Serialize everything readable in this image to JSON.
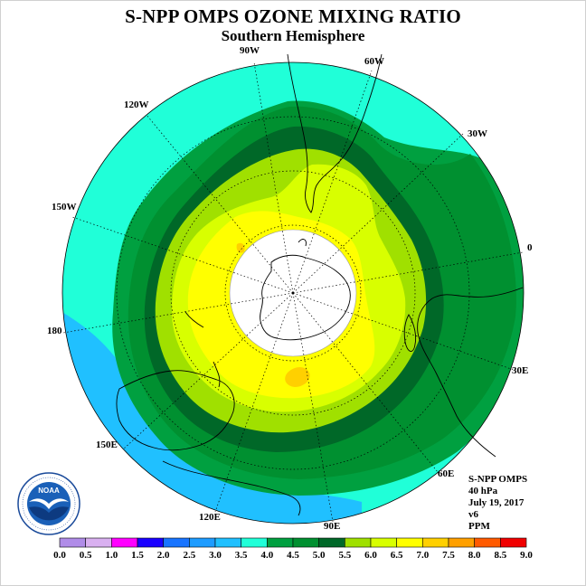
{
  "title": "S-NPP OMPS OZONE MIXING RATIO",
  "subtitle": "Southern Hemisphere",
  "longitude_labels": [
    "90W",
    "60W",
    "30W",
    "0",
    "30E",
    "60E",
    "90E",
    "120E",
    "150E",
    "180",
    "150W",
    "120W"
  ],
  "info": {
    "instrument": "S-NPP OMPS",
    "level": "40 hPa",
    "date": "July 19, 2017",
    "version": "v6",
    "units": "PPM"
  },
  "colorbar": {
    "ticks": [
      "0.0",
      "0.5",
      "1.0",
      "1.5",
      "2.0",
      "2.5",
      "3.0",
      "3.5",
      "4.0",
      "4.5",
      "5.0",
      "5.5",
      "6.0",
      "6.5",
      "7.0",
      "7.5",
      "8.0",
      "8.5",
      "9.0"
    ],
    "colors": [
      "#b08ce8",
      "#d9b0f0",
      "#ff00ff",
      "#1a00ff",
      "#1874ff",
      "#1e9cff",
      "#20c0ff",
      "#20ffd8",
      "#00a040",
      "#009030",
      "#006828",
      "#a0e000",
      "#d8ff00",
      "#ffff00",
      "#ffd000",
      "#ffa000",
      "#ff5a00",
      "#f00000",
      "#8a5030"
    ]
  },
  "contour_levels": [
    {
      "name": "3.5-4.0",
      "color": "#20ffd8"
    },
    {
      "name": "4.0-4.5",
      "color": "#00a040"
    },
    {
      "name": "4.5-5.0",
      "color": "#009030"
    },
    {
      "name": "5.0-5.5",
      "color": "#006828"
    },
    {
      "name": "5.5-6.0",
      "color": "#a0e000"
    },
    {
      "name": "6.0-6.5",
      "color": "#d8ff00"
    },
    {
      "name": "6.5-7.0",
      "color": "#ffff00"
    },
    {
      "name": "7.0-7.5",
      "color": "#ffd000"
    }
  ],
  "lower_band_color": "#20c0ff",
  "logo_text": "NOAA"
}
